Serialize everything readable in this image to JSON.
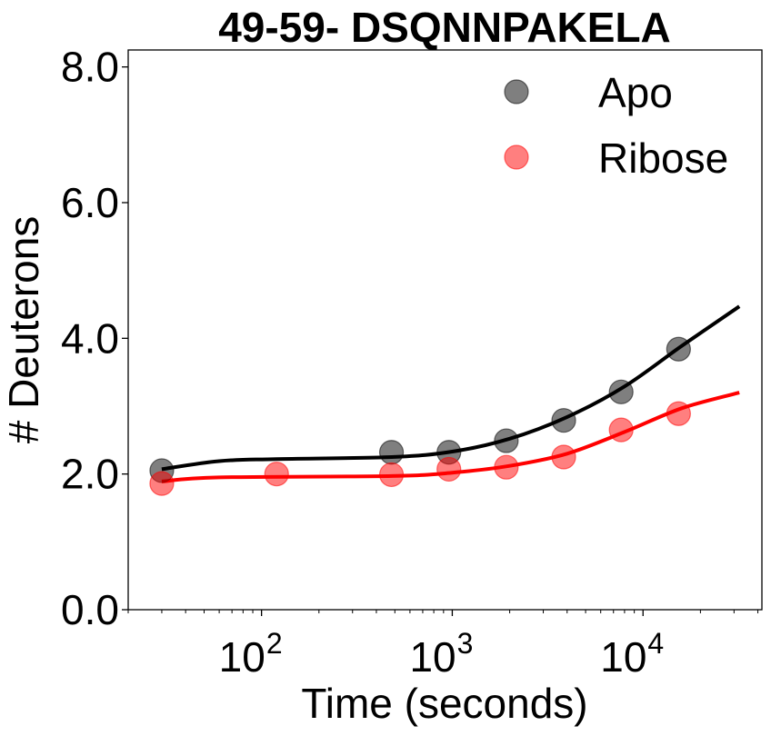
{
  "chart_data": {
    "type": "scatter",
    "title": "49-59- DSQNNPAKELA",
    "xlabel": "Time (seconds)",
    "ylabel": "# Deuterons",
    "x_scale": "log",
    "xlim": [
      20,
      42000
    ],
    "ylim": [
      0,
      8.25
    ],
    "yticks": [
      {
        "value": 0,
        "label": "0.0"
      },
      {
        "value": 2,
        "label": "2.0"
      },
      {
        "value": 4,
        "label": "4.0"
      },
      {
        "value": 6,
        "label": "6.0"
      },
      {
        "value": 8,
        "label": "8.0"
      }
    ],
    "xticks": [
      {
        "value": 100,
        "base": "10",
        "exp": "2"
      },
      {
        "value": 1000,
        "base": "10",
        "exp": "3"
      },
      {
        "value": 10000,
        "base": "10",
        "exp": "4"
      }
    ],
    "legend_position": "top-right",
    "grid": false,
    "series": [
      {
        "name": "Apo",
        "marker_color": "#000000",
        "marker_opacity": 0.5,
        "line_color": "#000000",
        "points": [
          {
            "x": 30,
            "y": 2.05
          },
          {
            "x": 480,
            "y": 2.32
          },
          {
            "x": 960,
            "y": 2.32
          },
          {
            "x": 1920,
            "y": 2.49
          },
          {
            "x": 3840,
            "y": 2.79
          },
          {
            "x": 7680,
            "y": 3.21
          },
          {
            "x": 15360,
            "y": 3.84
          }
        ],
        "fit": [
          {
            "x": 30,
            "y": 2.07
          },
          {
            "x": 60,
            "y": 2.19
          },
          {
            "x": 120,
            "y": 2.22
          },
          {
            "x": 480,
            "y": 2.25
          },
          {
            "x": 1000,
            "y": 2.33
          },
          {
            "x": 2000,
            "y": 2.52
          },
          {
            "x": 4000,
            "y": 2.84
          },
          {
            "x": 8000,
            "y": 3.29
          },
          {
            "x": 16000,
            "y": 3.89
          },
          {
            "x": 32000,
            "y": 4.47
          }
        ]
      },
      {
        "name": "Ribose",
        "marker_color": "#ff0000",
        "marker_opacity": 0.5,
        "line_color": "#ff0000",
        "points": [
          {
            "x": 30,
            "y": 1.86
          },
          {
            "x": 120,
            "y": 2.0
          },
          {
            "x": 480,
            "y": 1.99
          },
          {
            "x": 960,
            "y": 2.07
          },
          {
            "x": 1920,
            "y": 2.1
          },
          {
            "x": 3840,
            "y": 2.25
          },
          {
            "x": 7680,
            "y": 2.65
          },
          {
            "x": 15360,
            "y": 2.89
          }
        ],
        "fit": [
          {
            "x": 30,
            "y": 1.89
          },
          {
            "x": 60,
            "y": 1.95
          },
          {
            "x": 480,
            "y": 1.97
          },
          {
            "x": 1000,
            "y": 2.02
          },
          {
            "x": 2000,
            "y": 2.12
          },
          {
            "x": 4000,
            "y": 2.3
          },
          {
            "x": 8000,
            "y": 2.62
          },
          {
            "x": 16000,
            "y": 2.97
          },
          {
            "x": 32000,
            "y": 3.2
          }
        ]
      }
    ]
  }
}
